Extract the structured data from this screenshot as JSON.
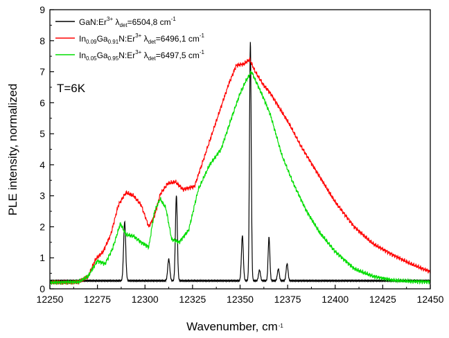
{
  "chart_data": {
    "type": "line",
    "xlabel": "Wavenumber, cm",
    "xlabel_superscript": "-1",
    "ylabel": "PLE intensity, normalized",
    "xlim": [
      12250,
      12450
    ],
    "ylim": [
      0,
      9
    ],
    "x_ticks": [
      "12250",
      "12275",
      "12300",
      "12325",
      "12350",
      "12375",
      "12400",
      "12425",
      "12450"
    ],
    "y_ticks": [
      "0",
      "1",
      "2",
      "3",
      "4",
      "5",
      "6",
      "7",
      "8",
      "9"
    ],
    "annotation": "T=6K",
    "grid": false,
    "legend_position": "top-left",
    "legend": [
      {
        "color": "#000000",
        "parts": [
          {
            "t": "GaN:Er",
            "s": "n"
          },
          {
            "t": "3+",
            "s": "sup"
          },
          {
            "t": " λ",
            "s": "n"
          },
          {
            "t": "det",
            "s": "sub"
          },
          {
            "t": "=6504,8 cm",
            "s": "n"
          },
          {
            "t": "-1",
            "s": "sup"
          }
        ]
      },
      {
        "color": "#ff0000",
        "parts": [
          {
            "t": "In",
            "s": "n"
          },
          {
            "t": "0.09",
            "s": "sub"
          },
          {
            "t": "Ga",
            "s": "n"
          },
          {
            "t": "0.91",
            "s": "sub"
          },
          {
            "t": "N:Er",
            "s": "n"
          },
          {
            "t": "3+",
            "s": "sup"
          },
          {
            "t": " λ",
            "s": "n"
          },
          {
            "t": "det",
            "s": "sub"
          },
          {
            "t": "=6496,1 cm",
            "s": "n"
          },
          {
            "t": "-1",
            "s": "sup"
          }
        ]
      },
      {
        "color": "#00dd00",
        "parts": [
          {
            "t": "In",
            "s": "n"
          },
          {
            "t": "0.05",
            "s": "sub"
          },
          {
            "t": "Ga",
            "s": "n"
          },
          {
            "t": "0.95",
            "s": "sub"
          },
          {
            "t": "N:Er",
            "s": "n"
          },
          {
            "t": "3+",
            "s": "sup"
          },
          {
            "t": " λ",
            "s": "n"
          },
          {
            "t": "det",
            "s": "sub"
          },
          {
            "t": "=6497,5 cm",
            "s": "n"
          },
          {
            "t": "-1",
            "s": "sup"
          }
        ]
      }
    ],
    "series": [
      {
        "color": "#000000",
        "baseline": 0.26,
        "peaks": [
          [
            12289.3,
            1.9,
            0.55
          ],
          [
            12312.5,
            0.7,
            0.55
          ],
          [
            12316.5,
            2.75,
            0.5
          ],
          [
            12351.2,
            1.45,
            0.5
          ],
          [
            12355.4,
            7.7,
            0.45
          ],
          [
            12360.2,
            0.35,
            0.5
          ],
          [
            12365.2,
            1.4,
            0.45
          ],
          [
            12370.1,
            0.38,
            0.5
          ],
          [
            12374.7,
            0.55,
            0.5
          ]
        ]
      },
      {
        "color": "#ff0000",
        "x": [
          12250,
          12265,
          12270,
          12274,
          12278,
          12282,
          12286,
          12290,
          12294,
          12298,
          12302,
          12305,
          12308,
          12312,
          12316,
          12320,
          12326,
          12332,
          12338,
          12344,
          12348,
          12352,
          12355,
          12358,
          12362,
          12366,
          12370,
          12376,
          12382,
          12390,
          12400,
          12410,
          12420,
          12430,
          12440,
          12450
        ],
        "y": [
          0.2,
          0.22,
          0.38,
          0.95,
          1.2,
          1.75,
          2.7,
          3.1,
          3.0,
          2.7,
          2.0,
          2.35,
          3.05,
          3.4,
          3.45,
          3.2,
          3.3,
          4.4,
          5.5,
          6.6,
          7.2,
          7.25,
          7.4,
          7.0,
          6.6,
          6.3,
          5.9,
          5.3,
          4.6,
          3.8,
          2.8,
          2.0,
          1.45,
          1.1,
          0.8,
          0.55
        ]
      },
      {
        "color": "#00dd00",
        "x": [
          12250,
          12265,
          12270,
          12275,
          12279,
          12283,
          12287,
          12290,
          12294,
          12298,
          12302,
          12305,
          12308,
          12311,
          12314,
          12318,
          12323,
          12328,
          12334,
          12340,
          12346,
          12350,
          12353,
          12356,
          12359,
          12362,
          12366,
          12372,
          12378,
          12385,
          12392,
          12400,
          12410,
          12420,
          12430,
          12440,
          12450
        ],
        "y": [
          0.2,
          0.22,
          0.4,
          0.9,
          0.8,
          1.3,
          2.1,
          1.75,
          1.7,
          1.5,
          1.35,
          2.5,
          2.9,
          2.6,
          1.6,
          1.5,
          1.9,
          3.2,
          4.0,
          4.5,
          5.6,
          6.3,
          6.7,
          7.0,
          6.6,
          6.2,
          5.6,
          4.3,
          3.4,
          2.5,
          1.8,
          1.2,
          0.65,
          0.4,
          0.28,
          0.24,
          0.22
        ]
      }
    ]
  }
}
